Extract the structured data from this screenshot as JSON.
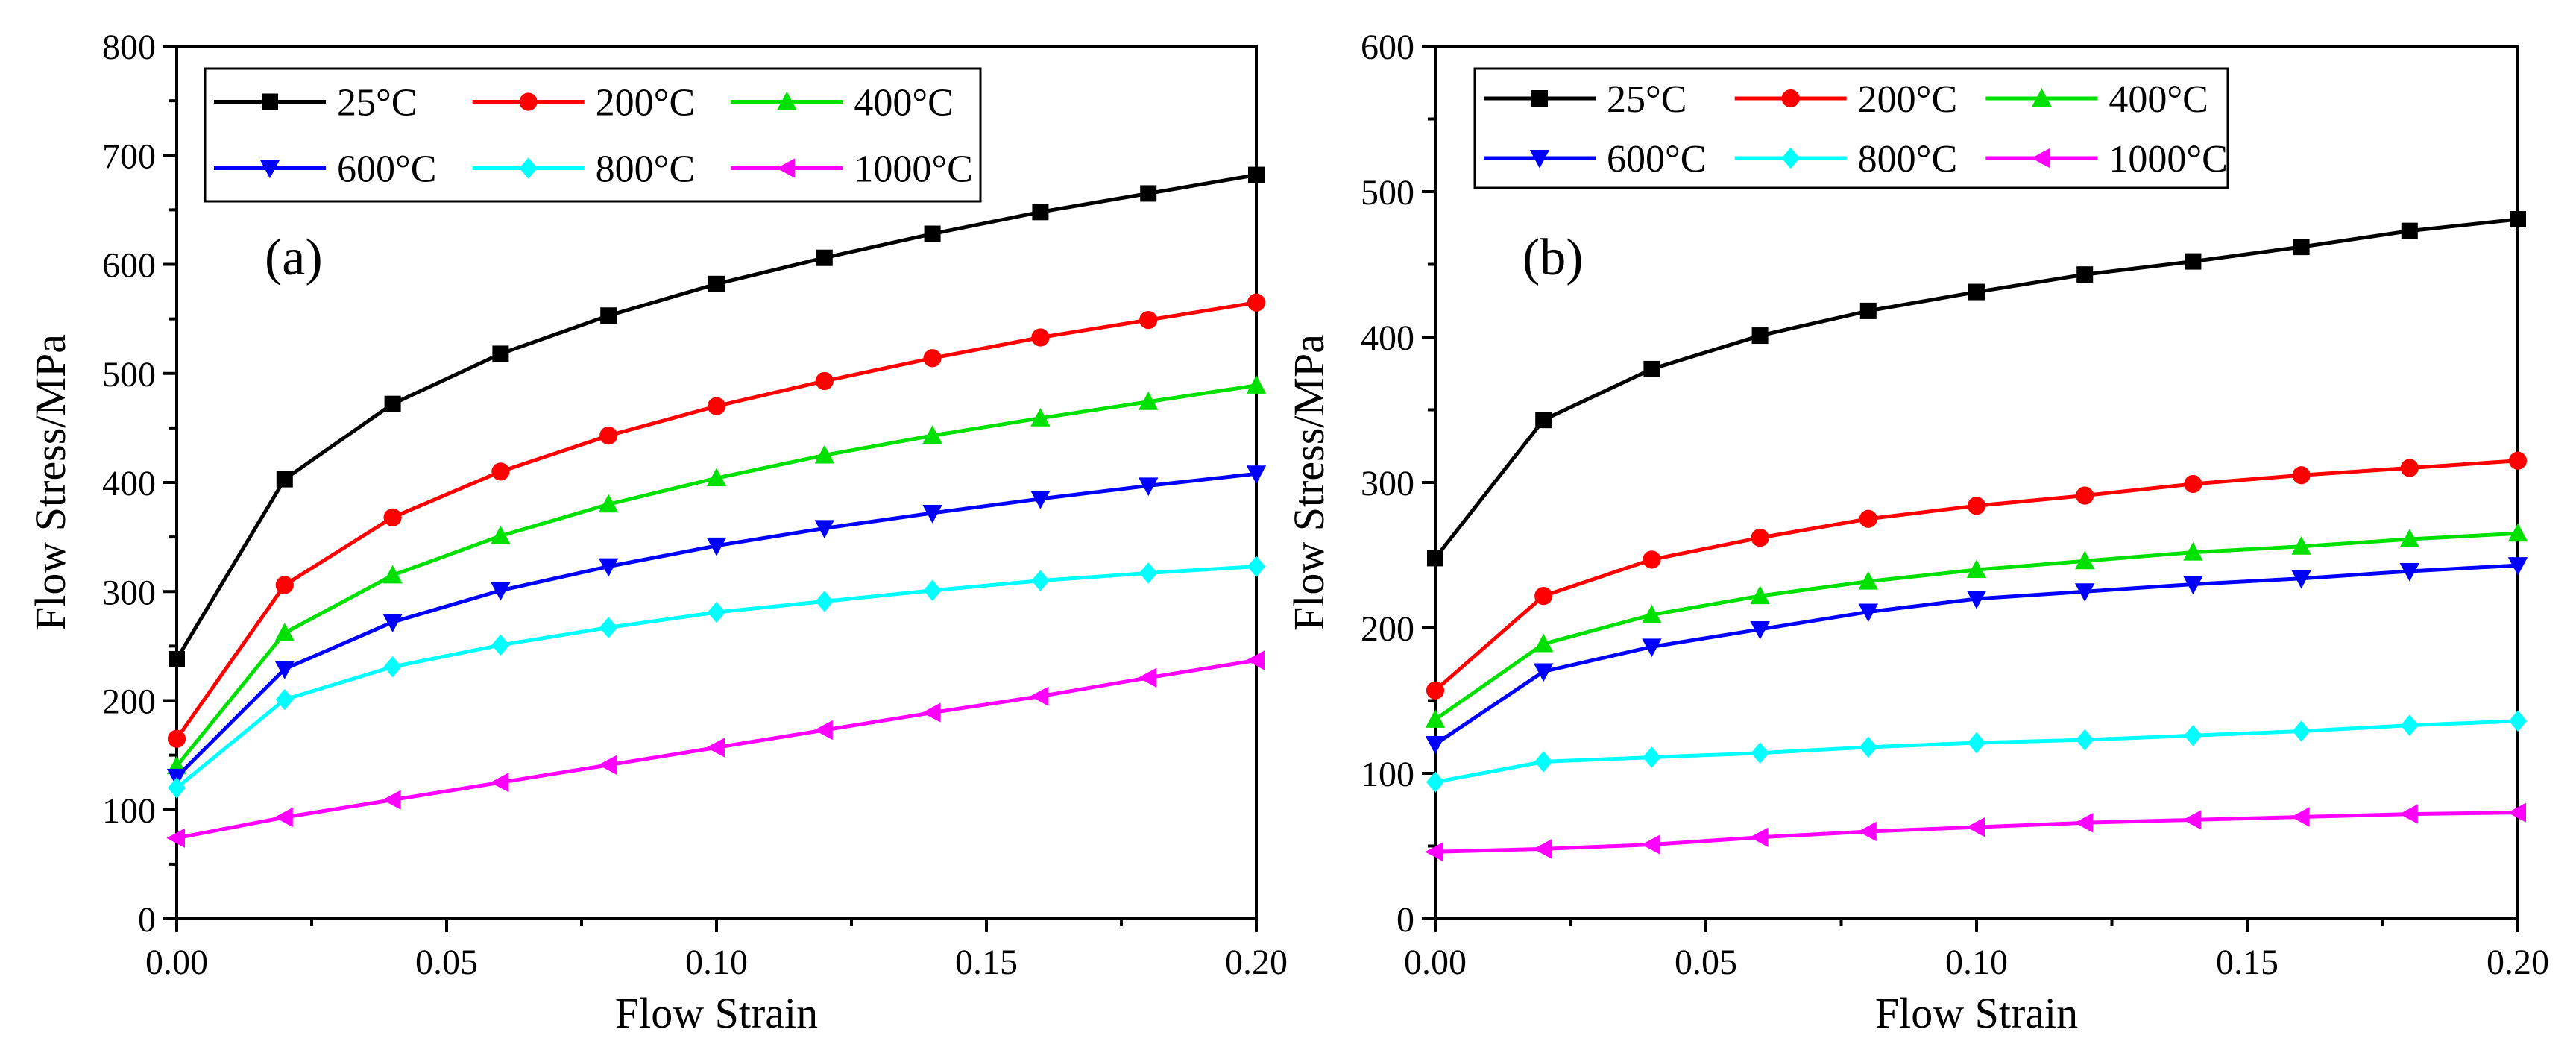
{
  "chart_data": [
    {
      "type": "line",
      "panel_label": "(a)",
      "title": "",
      "xlabel": "Flow Strain",
      "ylabel": "Flow Stress/MPa",
      "xlim": [
        0,
        0.2
      ],
      "ylim": [
        0,
        800
      ],
      "xticks": [
        "0.00",
        "0.05",
        "0.10",
        "0.15",
        "0.20"
      ],
      "yticks": [
        "0",
        "100",
        "200",
        "300",
        "400",
        "500",
        "600",
        "700",
        "800"
      ],
      "grid": false,
      "legend": "top-left",
      "x": [
        0,
        0.02,
        0.04,
        0.06,
        0.08,
        0.1,
        0.12,
        0.14,
        0.16,
        0.18,
        0.2
      ],
      "series": [
        {
          "name": "25°C",
          "color": "#000000",
          "marker": "square",
          "values": [
            238,
            403,
            472,
            518,
            553,
            582,
            606,
            628,
            648,
            665,
            682
          ]
        },
        {
          "name": "200°C",
          "color": "#ff0000",
          "marker": "circle",
          "values": [
            165,
            306,
            368,
            410,
            443,
            470,
            493,
            514,
            533,
            549,
            565
          ]
        },
        {
          "name": "400°C",
          "color": "#00e000",
          "marker": "triangle-up",
          "values": [
            140,
            262,
            315,
            351,
            380,
            404,
            425,
            443,
            459,
            474,
            489
          ]
        },
        {
          "name": "600°C",
          "color": "#0000ff",
          "marker": "triangle-down",
          "values": [
            130,
            229,
            272,
            301,
            323,
            342,
            358,
            372,
            385,
            397,
            408
          ]
        },
        {
          "name": "800°C",
          "color": "#00ffff",
          "marker": "diamond",
          "values": [
            120,
            201,
            231,
            251,
            267,
            281,
            291,
            301,
            310,
            317,
            323
          ]
        },
        {
          "name": "1000°C",
          "color": "#ff00ff",
          "marker": "triangle-left",
          "values": [
            74,
            93,
            109,
            125,
            141,
            157,
            173,
            189,
            204,
            221,
            237
          ]
        }
      ]
    },
    {
      "type": "line",
      "panel_label": "(b)",
      "title": "",
      "xlabel": "Flow Strain",
      "ylabel": "Flow Stress/MPa",
      "xlim": [
        0,
        0.2
      ],
      "ylim": [
        0,
        600
      ],
      "xticks": [
        "0.00",
        "0.05",
        "0.10",
        "0.15",
        "0.20"
      ],
      "yticks": [
        "0",
        "100",
        "200",
        "300",
        "400",
        "500",
        "600"
      ],
      "grid": false,
      "legend": "top-left",
      "x": [
        0,
        0.02,
        0.04,
        0.06,
        0.08,
        0.1,
        0.12,
        0.14,
        0.16,
        0.18,
        0.2
      ],
      "series": [
        {
          "name": "25°C",
          "color": "#000000",
          "marker": "square",
          "values": [
            248,
            343,
            378,
            401,
            418,
            431,
            443,
            452,
            462,
            473,
            481
          ]
        },
        {
          "name": "200°C",
          "color": "#ff0000",
          "marker": "circle",
          "values": [
            157,
            222,
            247,
            262,
            275,
            284,
            291,
            299,
            305,
            310,
            315
          ]
        },
        {
          "name": "400°C",
          "color": "#00e000",
          "marker": "triangle-up",
          "values": [
            137,
            189,
            209,
            222,
            232,
            240,
            246,
            252,
            256,
            261,
            265
          ]
        },
        {
          "name": "600°C",
          "color": "#0000ff",
          "marker": "triangle-down",
          "values": [
            120,
            170,
            187,
            199,
            211,
            220,
            225,
            230,
            234,
            239,
            243
          ]
        },
        {
          "name": "800°C",
          "color": "#00ffff",
          "marker": "diamond",
          "values": [
            94,
            108,
            111,
            114,
            118,
            121,
            123,
            126,
            129,
            133,
            136
          ]
        },
        {
          "name": "1000°C",
          "color": "#ff00ff",
          "marker": "triangle-left",
          "values": [
            46,
            48,
            51,
            56,
            60,
            63,
            66,
            68,
            70,
            72,
            73
          ]
        }
      ]
    }
  ]
}
